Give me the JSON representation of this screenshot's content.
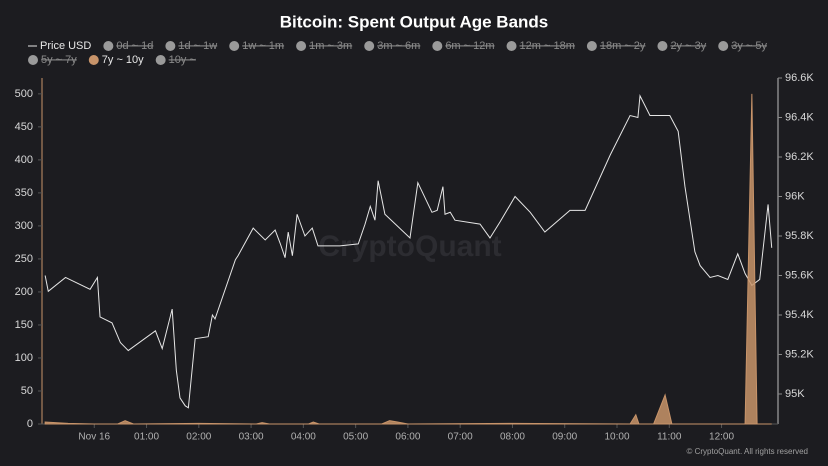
{
  "chart_data": {
    "type": "line",
    "title": "Bitcoin: Spent Output Age Bands",
    "watermark": "CryptoQuant",
    "credit": "© CryptoQuant. All rights reserved",
    "xlim": [
      -1,
      13.08
    ],
    "xticks": [
      {
        "value": 0,
        "label": "Nov 16"
      },
      {
        "value": 1,
        "label": "01:00"
      },
      {
        "value": 2,
        "label": "02:00"
      },
      {
        "value": 3,
        "label": "03:00"
      },
      {
        "value": 4,
        "label": "04:00"
      },
      {
        "value": 5,
        "label": "05:00"
      },
      {
        "value": 6,
        "label": "06:00"
      },
      {
        "value": 7,
        "label": "07:00"
      },
      {
        "value": 8,
        "label": "08:00"
      },
      {
        "value": 9,
        "label": "09:00"
      },
      {
        "value": 10,
        "label": "10:00"
      },
      {
        "value": 11,
        "label": "11:00"
      },
      {
        "value": 12,
        "label": "12:00"
      }
    ],
    "ylim": [
      0,
      524
    ],
    "yticks": [
      0,
      50,
      100,
      150,
      200,
      250,
      300,
      350,
      400,
      450,
      500
    ],
    "y2lim": [
      94848,
      96600
    ],
    "y2ticks": [
      {
        "value": 95000,
        "label": "95K"
      },
      {
        "value": 95200,
        "label": "95.2K"
      },
      {
        "value": 95400,
        "label": "95.4K"
      },
      {
        "value": 95600,
        "label": "95.6K"
      },
      {
        "value": 95800,
        "label": "95.8K"
      },
      {
        "value": 96000,
        "label": "96K"
      },
      {
        "value": 96200,
        "label": "96.2K"
      },
      {
        "value": 96400,
        "label": "96.4K"
      },
      {
        "value": 96600,
        "label": "96.6K"
      }
    ],
    "series": [
      {
        "name": "Price USD",
        "type": "line",
        "axis": "y2",
        "color": "#e6e6e6",
        "x": [
          -0.94,
          -0.88,
          -0.55,
          -0.08,
          0.06,
          0.11,
          0.34,
          0.5,
          0.65,
          1.17,
          1.3,
          1.49,
          1.57,
          1.64,
          1.74,
          1.8,
          1.93,
          2.18,
          2.26,
          2.31,
          2.7,
          2.75,
          3.04,
          3.27,
          3.46,
          3.56,
          3.65,
          3.71,
          3.79,
          3.88,
          4.03,
          4.17,
          4.28,
          4.7,
          5.05,
          5.18,
          5.28,
          5.37,
          5.43,
          5.56,
          5.76,
          6.04,
          6.19,
          6.46,
          6.56,
          6.67,
          6.71,
          6.81,
          6.9,
          7.38,
          7.57,
          7.76,
          8.05,
          8.34,
          8.62,
          9.1,
          9.39,
          9.87,
          10.25,
          10.4,
          10.44,
          10.63,
          11.01,
          11.17,
          11.3,
          11.49,
          11.59,
          11.78,
          11.93,
          12.12,
          12.31,
          12.45,
          12.58,
          12.73,
          12.89,
          12.96
        ],
        "values": [
          95600,
          95520,
          95590,
          95530,
          95590,
          95390,
          95360,
          95260,
          95220,
          95320,
          95230,
          95430,
          95120,
          94980,
          94940,
          94930,
          95280,
          95290,
          95400,
          95380,
          95680,
          95700,
          95840,
          95780,
          95830,
          95760,
          95690,
          95820,
          95700,
          95910,
          95800,
          95840,
          95750,
          95750,
          95760,
          95860,
          95950,
          95880,
          96080,
          95910,
          95860,
          95790,
          96070,
          95920,
          95930,
          96050,
          95910,
          95920,
          95880,
          95860,
          95790,
          95870,
          96000,
          95920,
          95820,
          95930,
          95930,
          96210,
          96410,
          96400,
          96510,
          96410,
          96410,
          96330,
          96050,
          95720,
          95650,
          95590,
          95600,
          95580,
          95710,
          95610,
          95550,
          95580,
          95960,
          95740
        ]
      },
      {
        "name": "0d ~ 1d",
        "visible": false
      },
      {
        "name": "1d ~ 1w",
        "visible": false
      },
      {
        "name": "1w ~ 1m",
        "visible": false
      },
      {
        "name": "1m ~ 3m",
        "visible": false
      },
      {
        "name": "3m ~ 6m",
        "visible": false
      },
      {
        "name": "6m ~ 12m",
        "visible": false
      },
      {
        "name": "12m ~ 18m",
        "visible": false
      },
      {
        "name": "18m ~ 2y",
        "visible": false
      },
      {
        "name": "2y ~ 3y",
        "visible": false
      },
      {
        "name": "3y ~ 5y",
        "visible": false
      },
      {
        "name": "5y ~ 7y",
        "visible": false
      },
      {
        "name": "7y ~ 10y",
        "type": "area",
        "color": "#c8946a",
        "x": [
          -0.94,
          -0.5,
          0,
          0.45,
          0.59,
          0.75,
          2,
          3.1,
          3.21,
          3.35,
          4.1,
          4.19,
          4.3,
          5.5,
          5.65,
          5.8,
          6,
          8,
          10.25,
          10.36,
          10.42,
          10.7,
          10.92,
          11.05,
          12.45,
          12.58,
          12.68,
          12.96
        ],
        "values": [
          3,
          1,
          0,
          0,
          5,
          0,
          1,
          0,
          2,
          0,
          0,
          3,
          0,
          0,
          5,
          3,
          0,
          1,
          0,
          14,
          0,
          0,
          44,
          0,
          0,
          500,
          0,
          0
        ]
      },
      {
        "name": "10y ~",
        "visible": false
      }
    ]
  }
}
